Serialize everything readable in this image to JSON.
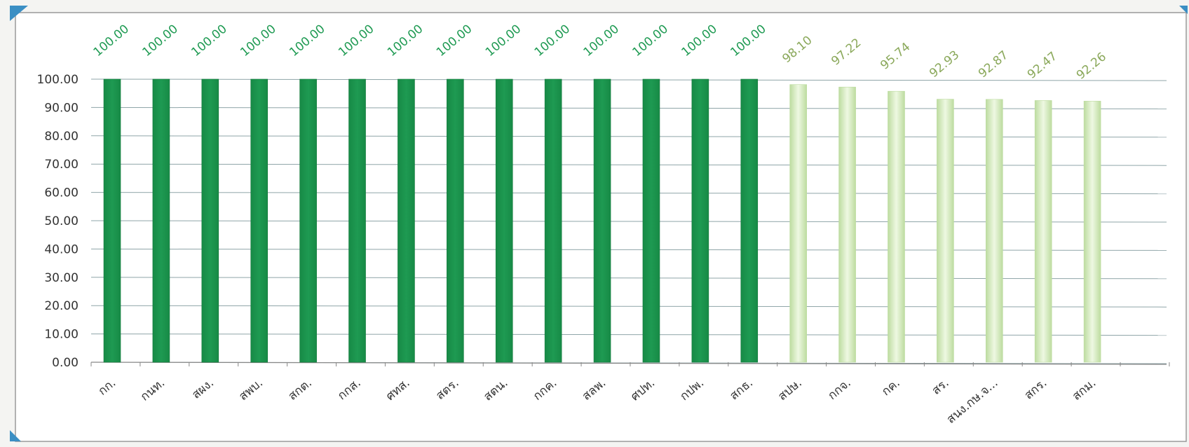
{
  "chart_data": {
    "type": "bar",
    "title": "",
    "xlabel": "",
    "ylabel": "",
    "ylim": [
      0,
      100
    ],
    "ytick_step": 10,
    "ytick_labels": [
      "0.00",
      "10.00",
      "20.00",
      "30.00",
      "40.00",
      "50.00",
      "60.00",
      "70.00",
      "80.00",
      "90.00",
      "100.00"
    ],
    "grid": true,
    "legend": "none",
    "categories": [
      "กก.",
      "กนท.",
      "สผง.",
      "สพบ.",
      "สกต.",
      "กกส.",
      "ศทส.",
      "สตร.",
      "สตน.",
      "กกค.",
      "สลพ.",
      "ศปท.",
      "กปพ.",
      "สกธ.",
      "สปษ.",
      "กกจ.",
      "กค.",
      "สร.",
      "สนง.กษ.จ...",
      "สกร.",
      "สกม."
    ],
    "values": [
      100.0,
      100.0,
      100.0,
      100.0,
      100.0,
      100.0,
      100.0,
      100.0,
      100.0,
      100.0,
      100.0,
      100.0,
      100.0,
      100.0,
      98.1,
      97.22,
      95.74,
      92.93,
      92.87,
      92.47,
      92.26
    ],
    "data_labels": [
      "100.00",
      "100.00",
      "100.00",
      "100.00",
      "100.00",
      "100.00",
      "100.00",
      "100.00",
      "100.00",
      "100.00",
      "100.00",
      "100.00",
      "100.00",
      "100.00",
      "98.10",
      "97.22",
      "95.74",
      "92.93",
      "92.87",
      "92.47",
      "92.26"
    ],
    "colors": {
      "full": "#1e9a52",
      "full_label": "#1e9a52",
      "partial": "#d9efc0",
      "partial_edge": "#bddca0",
      "partial_label": "#8aa85a",
      "grid": "#8fa5a8",
      "axis_text": "#333333",
      "frame": "#8c8c8c",
      "corner": "#3b8fc4"
    }
  }
}
